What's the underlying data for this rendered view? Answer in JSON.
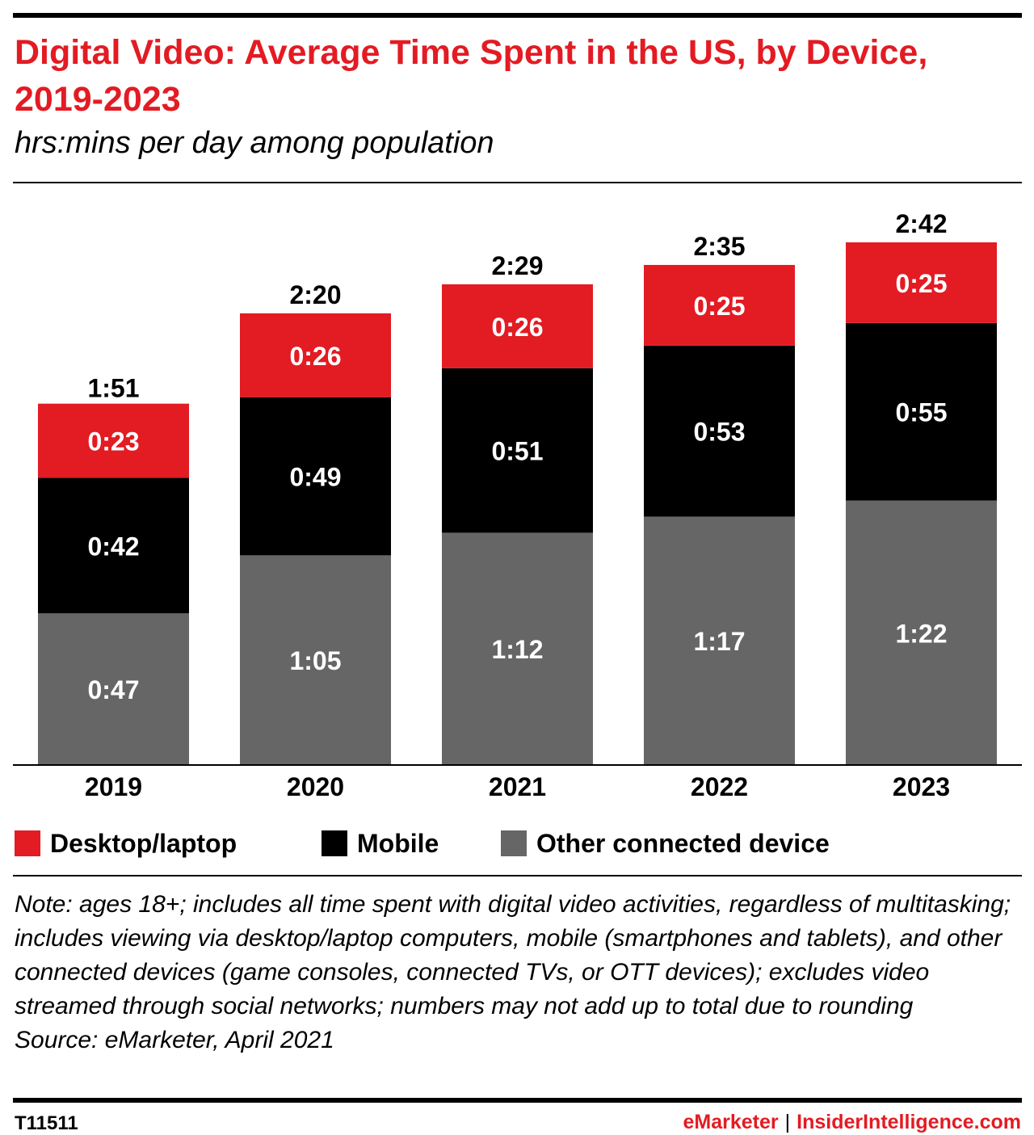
{
  "header": {
    "title": "Digital Video: Average Time Spent in the US, by Device, 2019-2023",
    "subtitle": "hrs:mins per day among population"
  },
  "colors": {
    "accent": "#e31b23",
    "desktop": "#e31b23",
    "mobile": "#000000",
    "other": "#666666",
    "segment_text": "#ffffff"
  },
  "chart_data": {
    "type": "bar",
    "stacked": true,
    "categories": [
      "2019",
      "2020",
      "2021",
      "2022",
      "2023"
    ],
    "series": [
      {
        "name": "Other connected device",
        "color": "#666666",
        "values": [
          47,
          65,
          72,
          77,
          82
        ],
        "labels": [
          "0:47",
          "1:05",
          "1:12",
          "1:17",
          "1:22"
        ]
      },
      {
        "name": "Mobile",
        "color": "#000000",
        "values": [
          42,
          49,
          51,
          53,
          55
        ],
        "labels": [
          "0:42",
          "0:49",
          "0:51",
          "0:53",
          "0:55"
        ]
      },
      {
        "name": "Desktop/laptop",
        "color": "#e31b23",
        "values": [
          23,
          26,
          26,
          25,
          25
        ],
        "labels": [
          "0:23",
          "0:26",
          "0:26",
          "0:25",
          "0:25"
        ]
      }
    ],
    "totals": [
      111,
      140,
      149,
      155,
      162
    ],
    "total_labels": [
      "1:51",
      "2:20",
      "2:29",
      "2:35",
      "2:42"
    ],
    "ylim": [
      0,
      162
    ],
    "grid": false,
    "legend_position": "bottom"
  },
  "legend": [
    {
      "label": "Desktop/laptop",
      "color": "#e31b23"
    },
    {
      "label": "Mobile",
      "color": "#000000"
    },
    {
      "label": "Other connected device",
      "color": "#666666"
    }
  ],
  "note": {
    "text": "Note: ages 18+; includes all time spent with digital video activities, regardless of multitasking; includes viewing via desktop/laptop computers, mobile (smartphones and tablets), and other connected devices (game consoles, connected TVs, or OTT devices); excludes video streamed through social networks; numbers may not add up to total due to rounding",
    "source": "Source: eMarketer, April 2021"
  },
  "footer": {
    "chart_id": "T11511",
    "brand_left": "eMarketer",
    "separator": "|",
    "brand_right": "InsiderIntelligence.com"
  }
}
